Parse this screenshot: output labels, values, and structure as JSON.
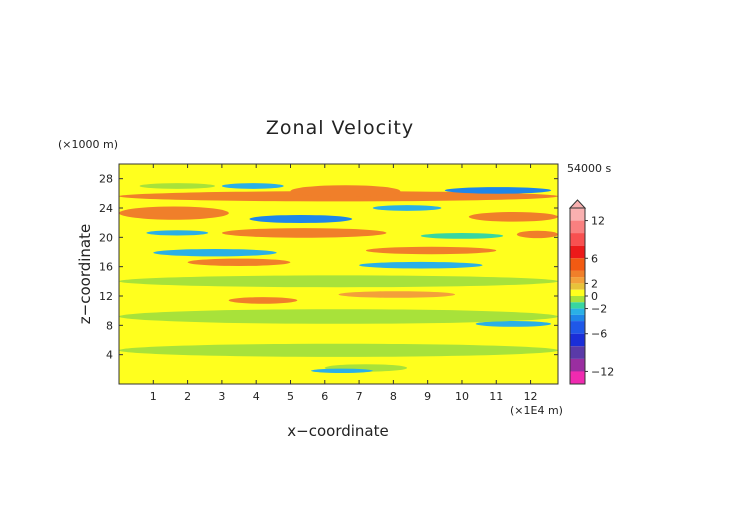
{
  "chart_data": {
    "type": "heatmap",
    "title": "Zonal Velocity",
    "xlabel": "x−coordinate",
    "ylabel": "z−coordinate",
    "x_unit": "(×1E4 m)",
    "y_unit": "(×1000 m)",
    "time_label": "54000 s",
    "xlim": [
      0,
      12.8
    ],
    "ylim": [
      0,
      30
    ],
    "x_ticks": [
      "1",
      "2",
      "3",
      "4",
      "5",
      "6",
      "7",
      "8",
      "9",
      "10",
      "11",
      "12"
    ],
    "y_ticks": [
      "4",
      "8",
      "12",
      "16",
      "20",
      "24",
      "28"
    ],
    "colorbar": {
      "tick_labels": [
        "12",
        "6",
        "2",
        "0",
        "−2",
        "−6",
        "−12"
      ],
      "levels": [
        {
          "from": 12,
          "to": 14,
          "color": "#f9b0b0"
        },
        {
          "from": 10,
          "to": 12,
          "color": "#f98080"
        },
        {
          "from": 8,
          "to": 10,
          "color": "#f85050"
        },
        {
          "from": 6,
          "to": 8,
          "color": "#ec1a1a"
        },
        {
          "from": 4,
          "to": 6,
          "color": "#f25a12"
        },
        {
          "from": 3,
          "to": 4,
          "color": "#f07f2a"
        },
        {
          "from": 2,
          "to": 3,
          "color": "#f3a03a"
        },
        {
          "from": 1,
          "to": 2,
          "color": "#e8c23a"
        },
        {
          "from": 0,
          "to": 1,
          "color": "#ffff1e"
        },
        {
          "from": -1,
          "to": 0,
          "color": "#a8e23a"
        },
        {
          "from": -2,
          "to": -1,
          "color": "#38d6a0"
        },
        {
          "from": -3,
          "to": -2,
          "color": "#2ab0e6"
        },
        {
          "from": -4,
          "to": -3,
          "color": "#1f86e8"
        },
        {
          "from": -6,
          "to": -4,
          "color": "#1f58e8"
        },
        {
          "from": -8,
          "to": -6,
          "color": "#1a2ed8"
        },
        {
          "from": -10,
          "to": -8,
          "color": "#5a3aa8"
        },
        {
          "from": -12,
          "to": -10,
          "color": "#9a2ea0"
        },
        {
          "from": -14,
          "to": -12,
          "color": "#f02ab0"
        }
      ]
    },
    "background_value": 0.5,
    "bands": [
      {
        "x0": 0,
        "x1": 12.8,
        "y": 25.6,
        "thickness": 1.4,
        "value": 3
      },
      {
        "x0": 0,
        "x1": 3.2,
        "y": 23.3,
        "thickness": 1.8,
        "value": 3.5
      },
      {
        "x0": 3.8,
        "x1": 6.8,
        "y": 22.5,
        "thickness": 1.1,
        "value": -4
      },
      {
        "x0": 3.0,
        "x1": 7.8,
        "y": 20.6,
        "thickness": 1.3,
        "value": 3.5
      },
      {
        "x0": 9.5,
        "x1": 12.6,
        "y": 26.4,
        "thickness": 0.9,
        "value": -3.5
      },
      {
        "x0": 5.0,
        "x1": 8.2,
        "y": 26.3,
        "thickness": 1.6,
        "value": 3.5
      },
      {
        "x0": 1.0,
        "x1": 4.6,
        "y": 17.9,
        "thickness": 1.0,
        "value": -2.5
      },
      {
        "x0": 7.2,
        "x1": 11.0,
        "y": 18.2,
        "thickness": 1.0,
        "value": 3
      },
      {
        "x0": 7.0,
        "x1": 10.6,
        "y": 16.2,
        "thickness": 0.9,
        "value": -3
      },
      {
        "x0": 2.0,
        "x1": 5.0,
        "y": 16.6,
        "thickness": 1.0,
        "value": 3
      },
      {
        "x0": 10.2,
        "x1": 12.8,
        "y": 22.8,
        "thickness": 1.3,
        "value": 3
      },
      {
        "x0": 0,
        "x1": 12.8,
        "y": 14.0,
        "thickness": 1.6,
        "value": -0.5
      },
      {
        "x0": 3.2,
        "x1": 5.2,
        "y": 11.4,
        "thickness": 0.9,
        "value": 3
      },
      {
        "x0": 6.4,
        "x1": 9.8,
        "y": 12.2,
        "thickness": 0.9,
        "value": 2.5
      },
      {
        "x0": 10.4,
        "x1": 12.6,
        "y": 8.2,
        "thickness": 0.8,
        "value": -2.5
      },
      {
        "x0": 0,
        "x1": 12.8,
        "y": 9.2,
        "thickness": 2.0,
        "value": -0.5
      },
      {
        "x0": 0,
        "x1": 12.8,
        "y": 4.6,
        "thickness": 1.8,
        "value": -0.5
      },
      {
        "x0": 6.0,
        "x1": 8.4,
        "y": 2.2,
        "thickness": 1.0,
        "value": -0.5
      },
      {
        "x0": 5.6,
        "x1": 7.4,
        "y": 1.8,
        "thickness": 0.6,
        "value": -2.5
      },
      {
        "x0": 0.6,
        "x1": 2.8,
        "y": 27.0,
        "thickness": 0.8,
        "value": -0.5
      },
      {
        "x0": 3.0,
        "x1": 4.8,
        "y": 27.0,
        "thickness": 0.8,
        "value": -2.5
      },
      {
        "x0": 7.4,
        "x1": 9.4,
        "y": 24.0,
        "thickness": 0.8,
        "value": -3
      },
      {
        "x0": 11.6,
        "x1": 12.8,
        "y": 20.4,
        "thickness": 1.0,
        "value": 3
      },
      {
        "x0": 0.8,
        "x1": 2.6,
        "y": 20.6,
        "thickness": 0.7,
        "value": -2.5
      },
      {
        "x0": 8.8,
        "x1": 11.2,
        "y": 20.2,
        "thickness": 0.8,
        "value": -2
      }
    ]
  }
}
